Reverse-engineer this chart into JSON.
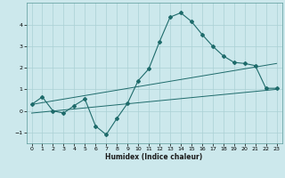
{
  "title": "",
  "xlabel": "Humidex (Indice chaleur)",
  "bg_color": "#cce8ec",
  "grid_color": "#aad0d4",
  "line_color": "#1e6b6b",
  "xlim": [
    -0.5,
    23.5
  ],
  "ylim": [
    -1.5,
    5.0
  ],
  "yticks": [
    -1,
    0,
    1,
    2,
    3,
    4
  ],
  "xticks": [
    0,
    1,
    2,
    3,
    4,
    5,
    6,
    7,
    8,
    9,
    10,
    11,
    12,
    13,
    14,
    15,
    16,
    17,
    18,
    19,
    20,
    21,
    22,
    23
  ],
  "curve_x": [
    0,
    1,
    2,
    3,
    4,
    5,
    6,
    7,
    8,
    9,
    10,
    11,
    12,
    13,
    14,
    15,
    16,
    17,
    18,
    19,
    20,
    21,
    22,
    23
  ],
  "curve_y": [
    0.3,
    0.65,
    0.0,
    -0.1,
    0.25,
    0.55,
    -0.7,
    -1.1,
    -0.35,
    0.35,
    1.4,
    1.95,
    3.2,
    4.35,
    4.55,
    4.15,
    3.55,
    3.0,
    2.55,
    2.25,
    2.2,
    2.1,
    1.05,
    1.05
  ],
  "line2_x": [
    0,
    23
  ],
  "line2_y": [
    -0.1,
    1.0
  ],
  "line3_x": [
    0,
    23
  ],
  "line3_y": [
    0.3,
    2.2
  ]
}
